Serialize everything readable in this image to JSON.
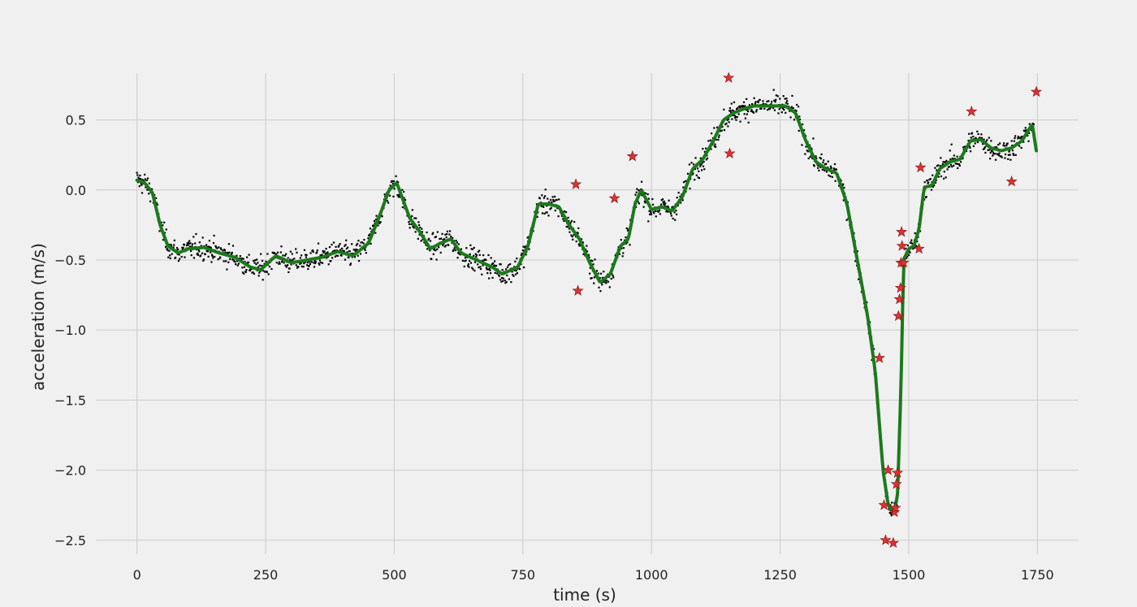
{
  "chart_data": {
    "type": "scatter",
    "title": "",
    "xlabel": "time (s)",
    "ylabel": "acceleration (m/s)",
    "xlim": [
      -80,
      1830
    ],
    "ylim": [
      -2.6,
      0.95
    ],
    "xticks": [
      0,
      250,
      500,
      750,
      1000,
      1250,
      1500,
      1750
    ],
    "yticks": [
      0.5,
      0.0,
      -0.5,
      -1.0,
      -1.5,
      -2.0,
      -2.5
    ],
    "ytick_labels": [
      "0.5",
      "0.0",
      "−0.5",
      "−1.0",
      "−1.5",
      "−2.0",
      "−2.5"
    ],
    "grid": true,
    "colors": {
      "background": "#f0f0f0",
      "grid": "#cbcbcb",
      "raw_points": "#000000",
      "smoothed_line": "#1b7a1b",
      "outliers": "#e03030"
    },
    "series": [
      {
        "type": "scatter",
        "marker": "dot",
        "color": "#000000",
        "sample_count": 1750,
        "noise_sd": 0.04
      },
      {
        "type": "line",
        "color": "#1b7a1b",
        "x": [
          0,
          15,
          30,
          45,
          60,
          80,
          100,
          130,
          160,
          190,
          220,
          240,
          270,
          300,
          330,
          360,
          390,
          420,
          450,
          470,
          490,
          505,
          515,
          530,
          550,
          570,
          590,
          610,
          630,
          660,
          690,
          710,
          740,
          760,
          780,
          800,
          820,
          840,
          860,
          880,
          900,
          920,
          940,
          955,
          968,
          980,
          1000,
          1020,
          1040,
          1060,
          1080,
          1100,
          1120,
          1140,
          1160,
          1180,
          1200,
          1230,
          1260,
          1280,
          1300,
          1320,
          1340,
          1360,
          1380,
          1400,
          1420,
          1435,
          1450,
          1460,
          1470,
          1478,
          1485,
          1490,
          1500,
          1510,
          1520,
          1530,
          1545,
          1560,
          1580,
          1600,
          1620,
          1640,
          1660,
          1680,
          1700,
          1720,
          1740,
          1748
        ],
        "y": [
          0.07,
          0.05,
          -0.02,
          -0.25,
          -0.4,
          -0.45,
          -0.42,
          -0.41,
          -0.45,
          -0.48,
          -0.55,
          -0.57,
          -0.47,
          -0.52,
          -0.5,
          -0.48,
          -0.44,
          -0.47,
          -0.38,
          -0.2,
          0.0,
          0.05,
          -0.05,
          -0.2,
          -0.3,
          -0.42,
          -0.38,
          -0.35,
          -0.45,
          -0.5,
          -0.55,
          -0.6,
          -0.55,
          -0.4,
          -0.1,
          -0.1,
          -0.12,
          -0.25,
          -0.35,
          -0.52,
          -0.66,
          -0.6,
          -0.4,
          -0.35,
          -0.1,
          0.0,
          -0.14,
          -0.12,
          -0.15,
          -0.05,
          0.15,
          0.22,
          0.35,
          0.5,
          0.55,
          0.58,
          0.6,
          0.6,
          0.6,
          0.55,
          0.35,
          0.2,
          0.15,
          0.12,
          -0.1,
          -0.5,
          -0.9,
          -1.3,
          -2.0,
          -2.25,
          -2.3,
          -2.2,
          -1.4,
          -0.5,
          -0.42,
          -0.4,
          -0.28,
          0.02,
          0.03,
          0.15,
          0.2,
          0.22,
          0.35,
          0.36,
          0.3,
          0.28,
          0.3,
          0.35,
          0.47,
          0.28
        ]
      },
      {
        "type": "scatter",
        "marker": "star",
        "color": "#e03030",
        "x": [
          853,
          857,
          928,
          963,
          1150,
          1152,
          1443,
          1452,
          1455,
          1460,
          1470,
          1472,
          1474,
          1476,
          1478,
          1480,
          1482,
          1484,
          1485,
          1486,
          1487,
          1490,
          1520,
          1523,
          1622,
          1700,
          1748
        ],
        "y": [
          0.04,
          -0.72,
          -0.06,
          0.24,
          0.8,
          0.26,
          -1.2,
          -2.25,
          -2.5,
          -2.0,
          -2.52,
          -2.3,
          -2.27,
          -2.1,
          -2.02,
          -0.9,
          -0.78,
          -0.7,
          -0.52,
          -0.3,
          -0.4,
          -0.52,
          -0.42,
          0.16,
          0.56,
          0.06,
          0.7
        ]
      }
    ]
  }
}
